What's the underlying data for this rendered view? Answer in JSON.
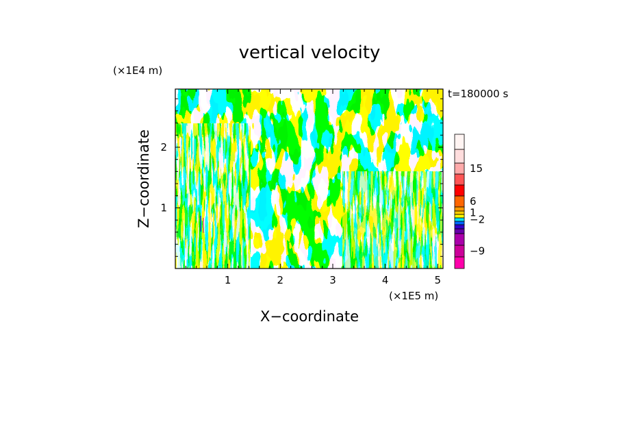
{
  "chart_data": {
    "type": "heatmap",
    "title": "vertical velocity",
    "time_label": "t=180000 s",
    "xlabel": "X−coordinate",
    "ylabel": "Z−coordinate",
    "x_unit": "(×1E5 m)",
    "y_unit": "(×1E4 m)",
    "xlim": [
      0,
      5.1
    ],
    "ylim": [
      0,
      2.96
    ],
    "x_ticks": [
      {
        "value": 1,
        "label": "1"
      },
      {
        "value": 2,
        "label": "2"
      },
      {
        "value": 3,
        "label": "3"
      },
      {
        "value": 4,
        "label": "4"
      },
      {
        "value": 5,
        "label": "5"
      }
    ],
    "y_ticks": [
      {
        "value": 1,
        "label": "1"
      },
      {
        "value": 2,
        "label": "2"
      }
    ],
    "dominant_colors": {
      "positive_small": "#ffff00",
      "negative_small": "#00e5ff"
    },
    "colorbar": {
      "levels": [
        {
          "color": "#ff00aa"
        },
        {
          "color": "#cc0099"
        },
        {
          "color": "#aa00aa"
        },
        {
          "color": "#6600aa"
        },
        {
          "color": "#3300cc"
        },
        {
          "color": "#0066ff"
        },
        {
          "color": "#00e5ff"
        },
        {
          "color": "#ffff00"
        },
        {
          "color": "#ffcc00"
        },
        {
          "color": "#ff9900"
        },
        {
          "color": "#ff6600"
        },
        {
          "color": "#ff0000"
        },
        {
          "color": "#ff5555"
        },
        {
          "color": "#ffaaaa"
        },
        {
          "color": "#ffdddd"
        },
        {
          "color": "#fff4f2"
        }
      ],
      "tick_labels": [
        {
          "label": "−9",
          "level_index": 1
        },
        {
          "label": "−2",
          "level_index": 6
        },
        {
          "label": "1",
          "level_index": 8
        },
        {
          "label": "6",
          "level_index": 10
        },
        {
          "label": "15",
          "level_index": 13
        }
      ]
    }
  }
}
